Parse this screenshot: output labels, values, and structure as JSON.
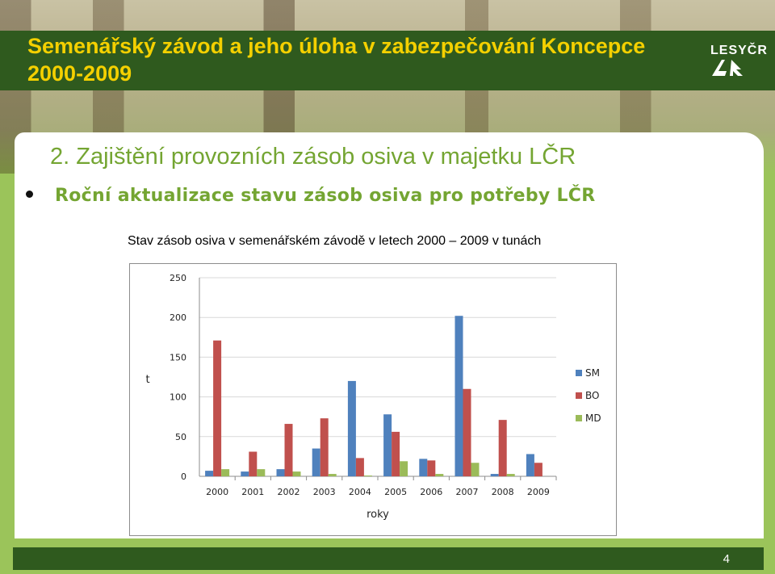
{
  "slide": {
    "title": "Semenářský závod a jeho úloha v zabezpečování Koncepce 2000-2009",
    "logo_text": "LESYČR",
    "heading": "2. Zajištění provozních zásob osiva v majetku LČR",
    "bullet": "Roční aktualizace stavu zásob osiva pro potřeby LČR",
    "caption": "Stav zásob osiva v semenářském závodě v letech 2000 – 2009 v tunách",
    "page_number": "4"
  },
  "colors": {
    "title_text": "#f4d000",
    "title_bar": "#2f5a1e",
    "heading": "#74a532",
    "background": "#9bc45a"
  },
  "chart_data": {
    "type": "bar",
    "categories": [
      "2000",
      "2001",
      "2002",
      "2003",
      "2004",
      "2005",
      "2006",
      "2007",
      "2008",
      "2009"
    ],
    "series": [
      {
        "name": "SM",
        "color": "#4f81bd",
        "values": [
          7,
          6,
          9,
          35,
          120,
          78,
          22,
          202,
          3,
          28
        ]
      },
      {
        "name": "BO",
        "color": "#c0504d",
        "values": [
          171,
          31,
          66,
          73,
          23,
          56,
          20,
          110,
          71,
          17
        ]
      },
      {
        "name": "MD",
        "color": "#9bbb59",
        "values": [
          9,
          9,
          6,
          3,
          1,
          19,
          3,
          17,
          3,
          0
        ]
      }
    ],
    "xlabel": "roky",
    "ylabel": "t",
    "ylim": [
      0,
      250
    ],
    "yticks": [
      0,
      50,
      100,
      150,
      200,
      250
    ],
    "grid": true,
    "legend_position": "right"
  }
}
